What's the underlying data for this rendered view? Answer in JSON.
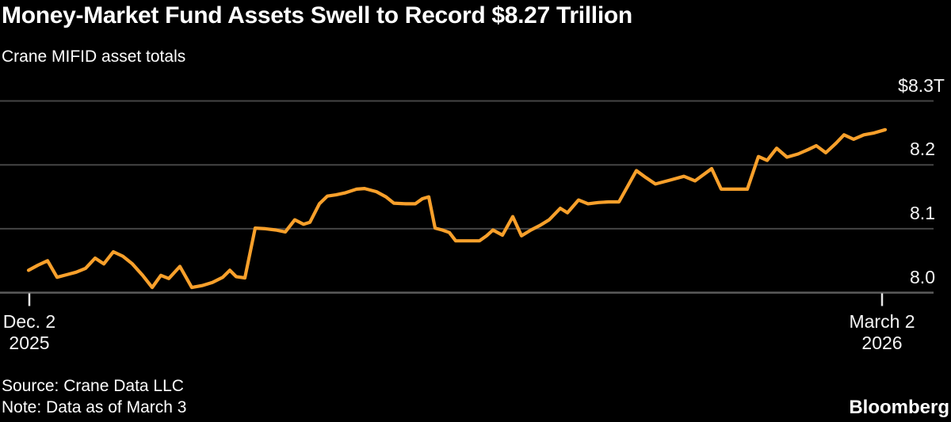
{
  "header": {
    "title": "Money-Market Fund Assets Swell to Record $8.27 Trillion",
    "subtitle": "Crane MIFID asset totals"
  },
  "footer": {
    "source": "Source: Crane Data LLC",
    "note": "Note: Data as of March 3",
    "brand": "Bloomberg"
  },
  "colors": {
    "background": "#000000",
    "text": "#ffffff",
    "line": "#F8A02B",
    "gridline": "#454545",
    "axisline": "#5c5c5c",
    "tick": "#e8e8e8"
  },
  "chart_data": {
    "type": "line",
    "title": "Money-Market Fund Assets Swell to Record $8.27 Trillion",
    "subtitle": "Crane MIFID asset totals",
    "xlabel": "",
    "ylabel": "",
    "unit": "USD trillions",
    "grid": "horizontal",
    "legend": "none",
    "ylim": [
      7.99,
      8.31
    ],
    "y_ticks": [
      {
        "label": "$8.3T",
        "value": 8.3
      },
      {
        "label": "8.2",
        "value": 8.2
      },
      {
        "label": "8.1",
        "value": 8.1
      },
      {
        "label": "8.0",
        "value": 8.0
      }
    ],
    "x_ticks": [
      {
        "label": "Dec. 2",
        "sublabel": "2025",
        "px": 37
      },
      {
        "label": "March 2",
        "sublabel": "2026",
        "px": 1113
      }
    ],
    "series": [
      {
        "name": "Crane MIFID asset totals",
        "color": "#F8A02B",
        "points": [
          [
            36,
            8.035
          ],
          [
            48,
            8.043
          ],
          [
            60,
            8.05
          ],
          [
            72,
            8.024
          ],
          [
            84,
            8.028
          ],
          [
            96,
            8.032
          ],
          [
            108,
            8.038
          ],
          [
            120,
            8.054
          ],
          [
            131,
            8.045
          ],
          [
            143,
            8.064
          ],
          [
            155,
            8.057
          ],
          [
            167,
            8.045
          ],
          [
            180,
            8.027
          ],
          [
            192,
            8.008
          ],
          [
            203,
            8.027
          ],
          [
            213,
            8.022
          ],
          [
            227,
            8.041
          ],
          [
            242,
            8.008
          ],
          [
            255,
            8.011
          ],
          [
            268,
            8.016
          ],
          [
            281,
            8.024
          ],
          [
            290,
            8.035
          ],
          [
            298,
            8.025
          ],
          [
            309,
            8.023
          ],
          [
            322,
            8.101
          ],
          [
            335,
            8.1
          ],
          [
            348,
            8.098
          ],
          [
            360,
            8.095
          ],
          [
            372,
            8.114
          ],
          [
            383,
            8.107
          ],
          [
            391,
            8.11
          ],
          [
            403,
            8.139
          ],
          [
            413,
            8.151
          ],
          [
            424,
            8.153
          ],
          [
            435,
            8.156
          ],
          [
            450,
            8.162
          ],
          [
            460,
            8.163
          ],
          [
            475,
            8.158
          ],
          [
            487,
            8.15
          ],
          [
            497,
            8.14
          ],
          [
            512,
            8.139
          ],
          [
            524,
            8.139
          ],
          [
            533,
            8.147
          ],
          [
            541,
            8.15
          ],
          [
            549,
            8.101
          ],
          [
            558,
            8.098
          ],
          [
            567,
            8.094
          ],
          [
            575,
            8.081
          ],
          [
            590,
            8.081
          ],
          [
            605,
            8.081
          ],
          [
            614,
            8.089
          ],
          [
            622,
            8.098
          ],
          [
            634,
            8.09
          ],
          [
            647,
            8.119
          ],
          [
            658,
            8.089
          ],
          [
            670,
            8.098
          ],
          [
            681,
            8.105
          ],
          [
            693,
            8.114
          ],
          [
            707,
            8.132
          ],
          [
            716,
            8.125
          ],
          [
            730,
            8.145
          ],
          [
            742,
            8.139
          ],
          [
            755,
            8.141
          ],
          [
            768,
            8.142
          ],
          [
            781,
            8.142
          ],
          [
            803,
            8.191
          ],
          [
            815,
            8.18
          ],
          [
            827,
            8.17
          ],
          [
            845,
            8.176
          ],
          [
            863,
            8.182
          ],
          [
            877,
            8.175
          ],
          [
            898,
            8.194
          ],
          [
            910,
            8.162
          ],
          [
            926,
            8.162
          ],
          [
            943,
            8.162
          ],
          [
            957,
            8.213
          ],
          [
            968,
            8.207
          ],
          [
            980,
            8.226
          ],
          [
            993,
            8.212
          ],
          [
            1007,
            8.217
          ],
          [
            1020,
            8.224
          ],
          [
            1030,
            8.23
          ],
          [
            1042,
            8.219
          ],
          [
            1055,
            8.234
          ],
          [
            1065,
            8.247
          ],
          [
            1077,
            8.24
          ],
          [
            1090,
            8.247
          ],
          [
            1103,
            8.25
          ],
          [
            1117,
            8.255
          ]
        ]
      }
    ]
  }
}
